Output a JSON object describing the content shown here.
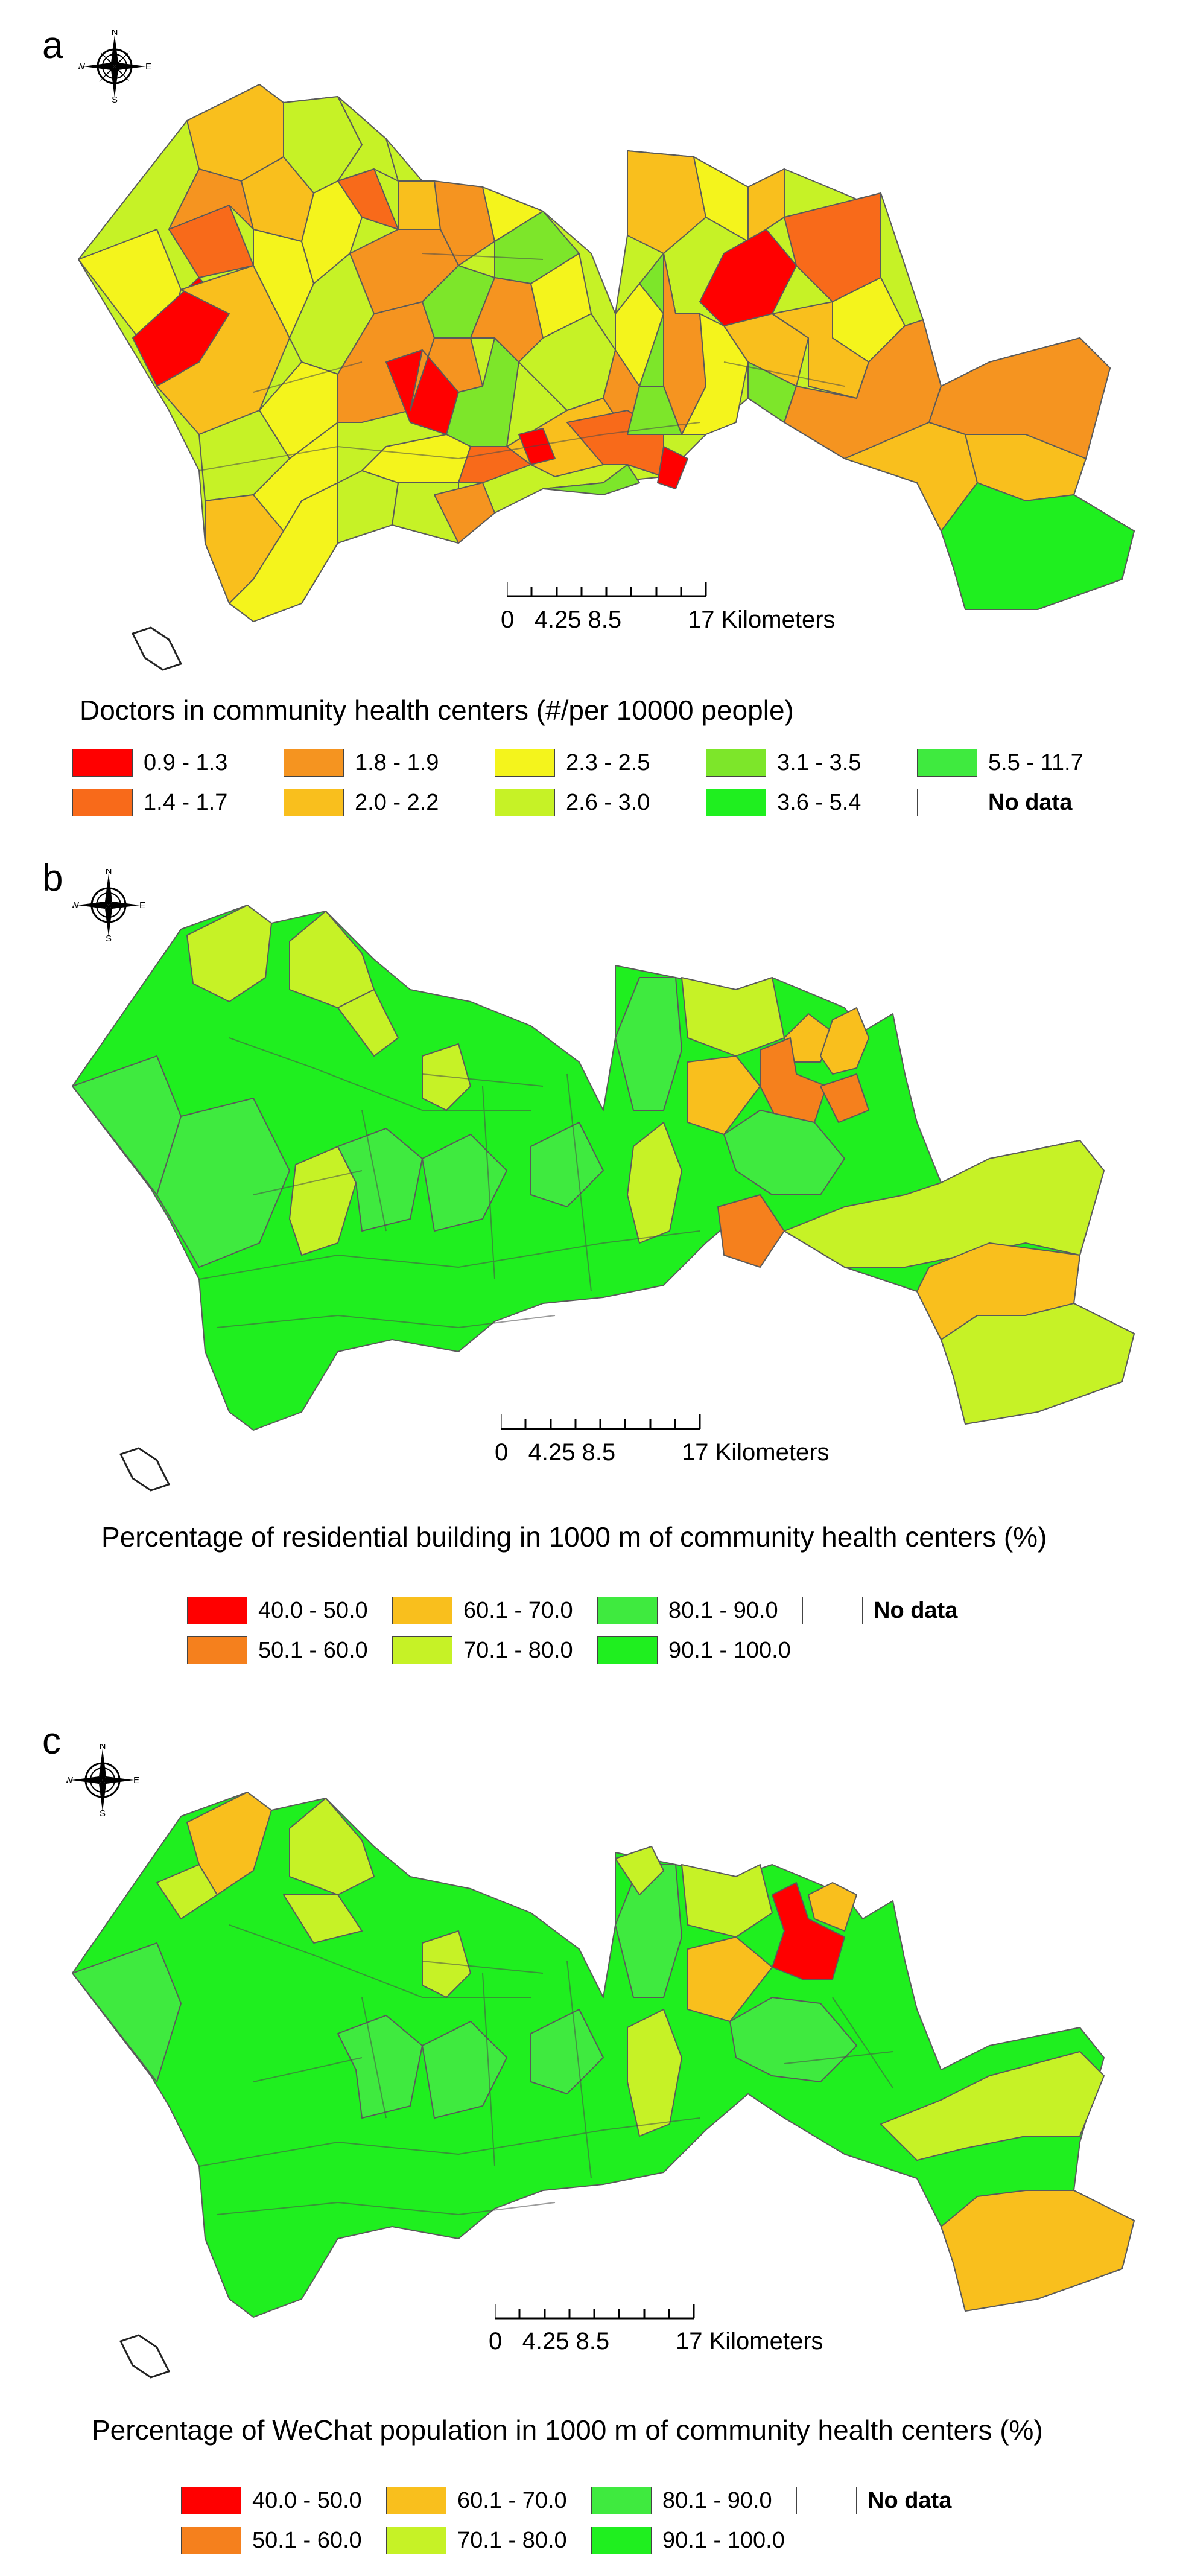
{
  "colors": {
    "c1": "#ff0000",
    "c2": "#f86a1a",
    "c3": "#f59420",
    "c4": "#f9bf1d",
    "c5": "#f4f41c",
    "c6": "#c6f226",
    "c7": "#7de62a",
    "c8": "#3fea3f",
    "c9": "#1fef1f",
    "nodata": "#ffffff"
  },
  "compass": {
    "n": "N",
    "s": "S",
    "e": "E",
    "w": "W"
  },
  "scale": {
    "ticks": "0   4.25 8.5",
    "end": "17 Kilometers"
  },
  "panels": [
    {
      "letter": "a",
      "legend_title": "Doctors in community health centers (#/per 10000 people)",
      "legend": [
        {
          "label": "0.9 - 1.3",
          "color": "#ff0000"
        },
        {
          "label": "1.4 - 1.7",
          "color": "#f86a1a"
        },
        {
          "label": "1.8 - 1.9",
          "color": "#f59420"
        },
        {
          "label": "2.0 - 2.2",
          "color": "#f9bf1d"
        },
        {
          "label": "2.3 - 2.5",
          "color": "#f4f41c"
        },
        {
          "label": "2.6 - 3.0",
          "color": "#c6f226"
        },
        {
          "label": "3.1 - 3.5",
          "color": "#7de62a"
        },
        {
          "label": "3.6 - 5.4",
          "color": "#1fef1f"
        },
        {
          "label": "5.5 - 11.7",
          "color": "#3fea3f"
        },
        {
          "label": "No data",
          "color": "#ffffff",
          "bold": true
        }
      ]
    },
    {
      "letter": "b",
      "legend_title": "Percentage of residential building  in 1000 m of community health centers (%)",
      "legend": [
        {
          "label": "40.0 - 50.0",
          "color": "#ff0000"
        },
        {
          "label": "50.1 - 60.0",
          "color": "#f5801d"
        },
        {
          "label": "60.1 - 70.0",
          "color": "#f9bf1d"
        },
        {
          "label": "70.1 - 80.0",
          "color": "#c6f226"
        },
        {
          "label": "80.1 - 90.0",
          "color": "#3fea3f"
        },
        {
          "label": "90.1 - 100.0",
          "color": "#1fef1f"
        },
        {
          "label": "No data",
          "color": "#ffffff",
          "bold": true
        }
      ]
    },
    {
      "letter": "c",
      "legend_title": "Percentage of WeChat population  in 1000 m of community health centers (%)",
      "legend": [
        {
          "label": "40.0 - 50.0",
          "color": "#ff0000"
        },
        {
          "label": "50.1 - 60.0",
          "color": "#f5801d"
        },
        {
          "label": "60.1 - 70.0",
          "color": "#f9bf1d"
        },
        {
          "label": "70.1 - 80.0",
          "color": "#c6f226"
        },
        {
          "label": "80.1 - 90.0",
          "color": "#3fea3f"
        },
        {
          "label": "90.1 - 100.0",
          "color": "#1fef1f"
        },
        {
          "label": "No data",
          "color": "#ffffff",
          "bold": true
        }
      ]
    }
  ]
}
